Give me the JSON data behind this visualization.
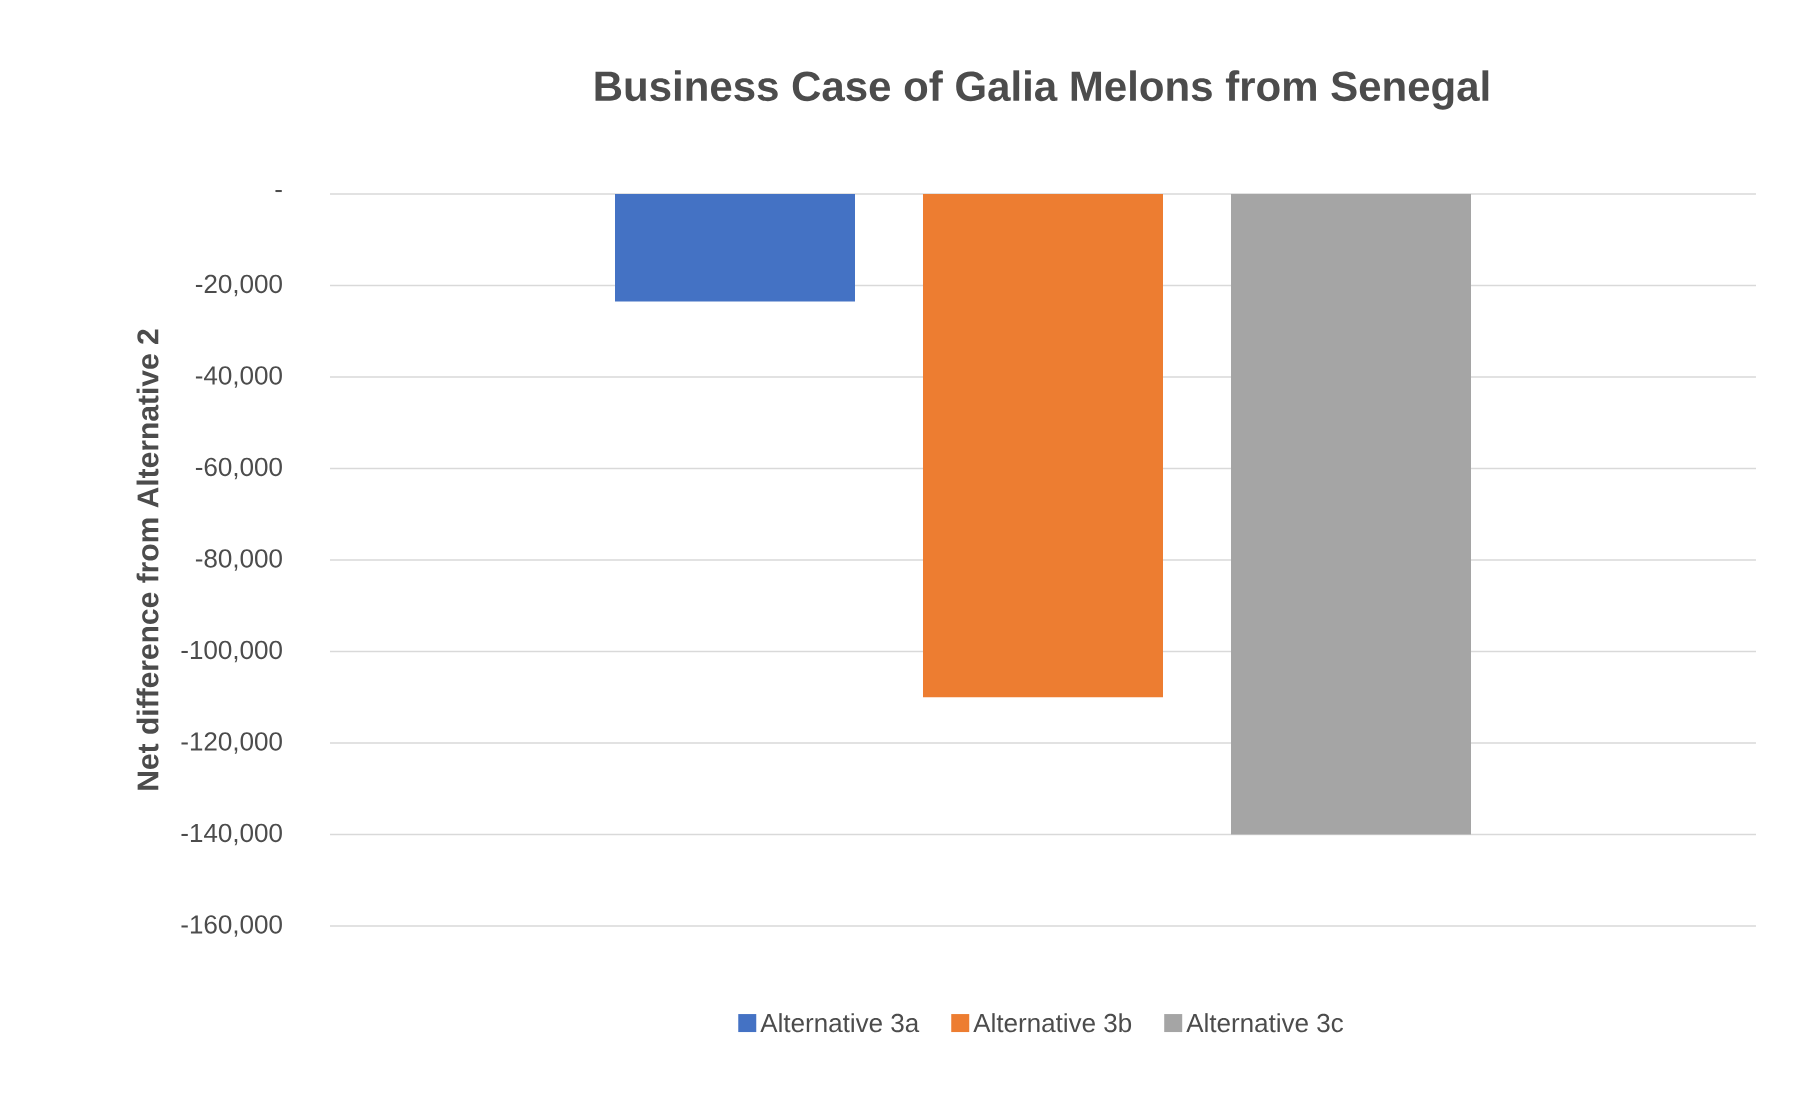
{
  "chart_data": {
    "type": "bar",
    "title": "Business Case of Galia  Melons from Senegal",
    "ylabel": "Net difference from Alternative 2",
    "categories": [
      null
    ],
    "series": [
      {
        "name": "Alternative 3a",
        "color": "#4472c4",
        "values": [
          -23500
        ]
      },
      {
        "name": "Alternative 3b",
        "color": "#ed7d31",
        "values": [
          -110000
        ]
      },
      {
        "name": "Alternative 3c",
        "color": "#a5a5a5",
        "values": [
          -140000
        ]
      }
    ],
    "ylim": [
      -160000,
      0
    ],
    "yticks": [
      {
        "value": 0,
        "label": "-"
      },
      {
        "value": -20000,
        "label": "-20,000"
      },
      {
        "value": -40000,
        "label": "-40,000"
      },
      {
        "value": -60000,
        "label": "-60,000"
      },
      {
        "value": -80000,
        "label": "-80,000"
      },
      {
        "value": -100000,
        "label": "-100,000"
      },
      {
        "value": -120000,
        "label": "-120,000"
      },
      {
        "value": -140000,
        "label": "-140,000"
      },
      {
        "value": -160000,
        "label": "-160,000"
      }
    ],
    "grid": "y",
    "legend": "bottom",
    "tick_labels": "y"
  }
}
